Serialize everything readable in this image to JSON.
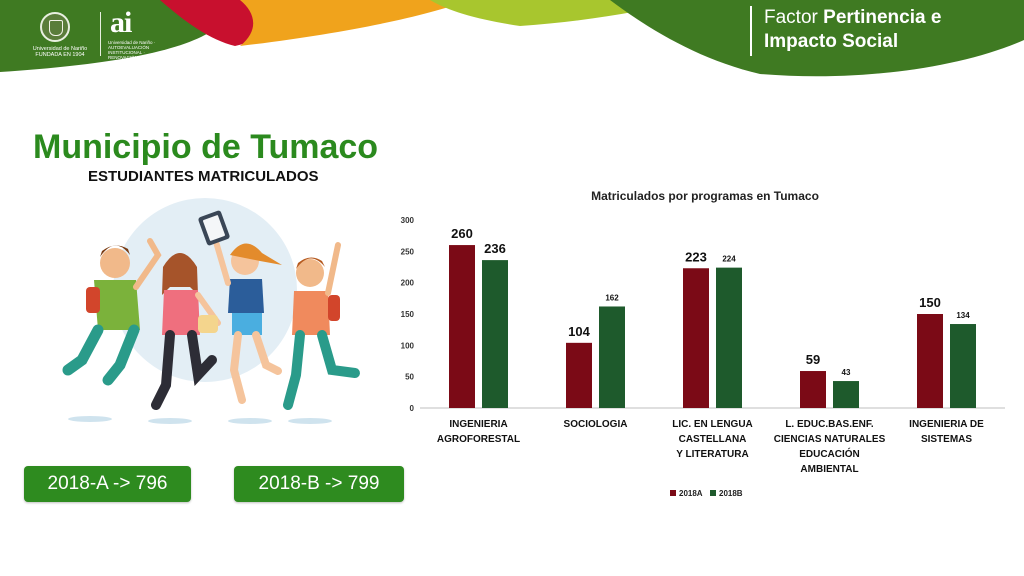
{
  "header": {
    "university_name": "Universidad de Nariño",
    "university_tagline": "FUNDADA EN 1904",
    "logo_text": "ai",
    "logo_subtext": "Universidad de Nariño · AUTOEVALUACIÓN INSTITUCIONAL · RENOVACIÓN DE LA ACREDITACIÓN",
    "factor_prefix": "Factor",
    "factor_strong": "Pertinencia e",
    "factor_line2": "Impacto Social",
    "colors": {
      "green": "#3f7a22",
      "red": "#c8102e",
      "orange": "#f0a31c",
      "lime": "#a8c62e"
    }
  },
  "page": {
    "title": "Municipio de Tumaco",
    "subtitle": "ESTUDIANTES MATRICULADOS"
  },
  "summary": {
    "a": "2018-A -> 796",
    "b": "2018-B -> 799",
    "color": "#2e8b1f"
  },
  "illustration": {
    "description_icon": "students-jumping-illustration"
  },
  "chart_data": {
    "type": "bar",
    "title": "Matriculados por programas en Tumaco",
    "categories": [
      [
        "INGENIERIA",
        "AGROFORESTAL"
      ],
      [
        "SOCIOLOGIA"
      ],
      [
        "LIC. EN LENGUA",
        "CASTELLANA",
        "Y LITERATURA"
      ],
      [
        "L. EDUC.BAS.ENF.",
        "CIENCIAS NATURALES",
        "EDUCACIÓN",
        "AMBIENTAL"
      ],
      [
        "INGENIERIA DE",
        "SISTEMAS"
      ]
    ],
    "series": [
      {
        "name": "2018A",
        "color": "#7b0a16",
        "values": [
          260,
          104,
          223,
          59,
          150
        ]
      },
      {
        "name": "2018B",
        "color": "#1e5a2c",
        "values": [
          236,
          162,
          224,
          43,
          134
        ]
      }
    ],
    "value_label_emphasis": [
      [
        true,
        true,
        true,
        true,
        true
      ],
      [
        true,
        false,
        false,
        false,
        false
      ]
    ],
    "ylim": [
      0,
      300
    ],
    "yticks": [
      0,
      50,
      100,
      150,
      200,
      250,
      300
    ],
    "grid": false,
    "legend": "bottom-center"
  }
}
